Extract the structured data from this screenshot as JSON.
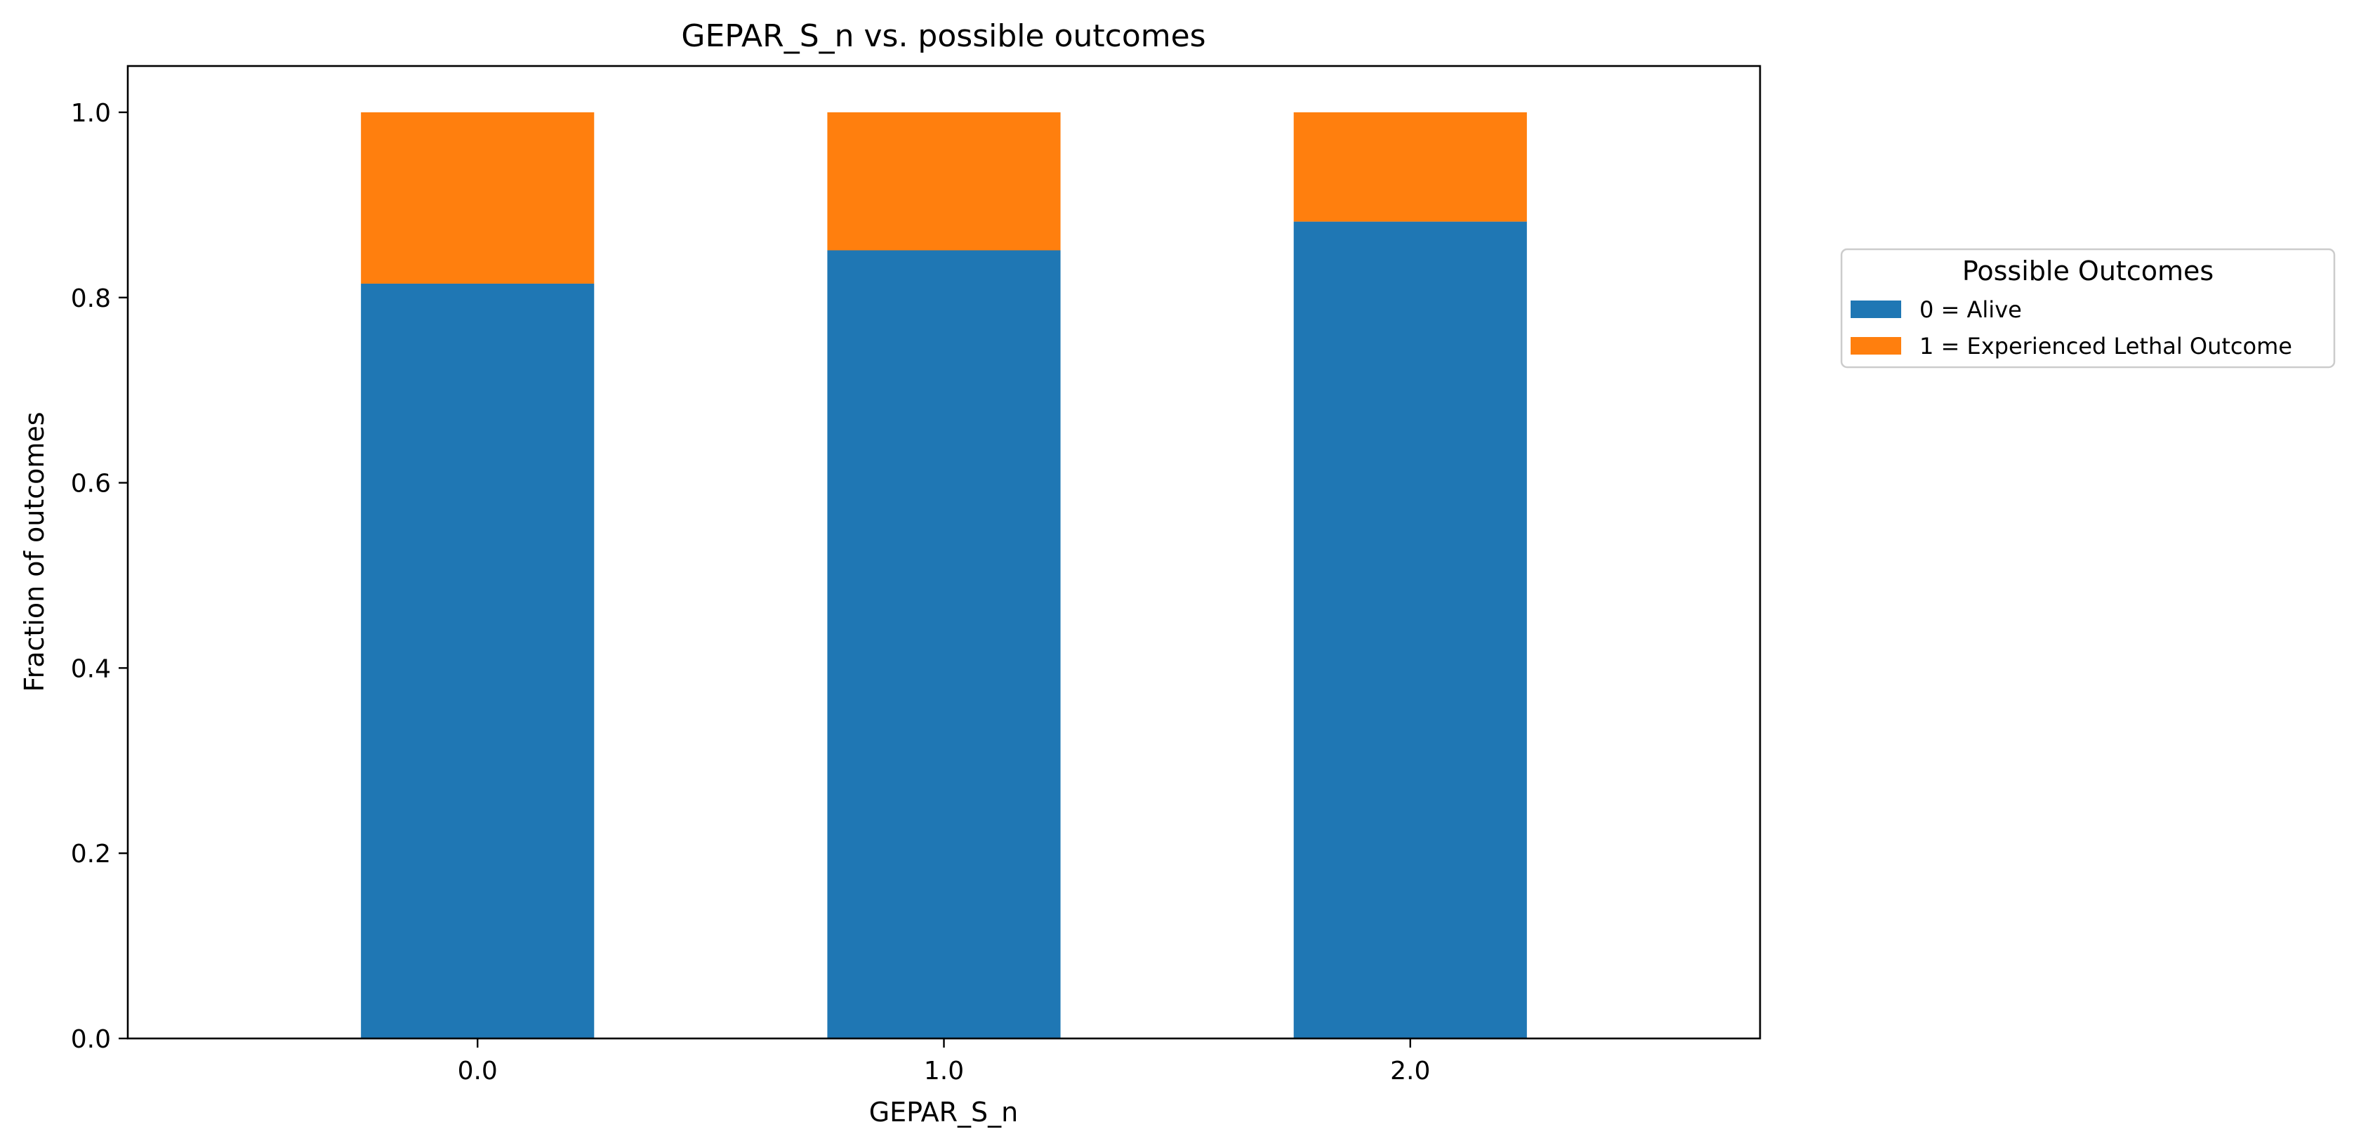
{
  "chart_data": {
    "type": "bar",
    "stacked": true,
    "title": "GEPAR_S_n vs. possible outcomes",
    "xlabel": "GEPAR_S_n",
    "ylabel": "Fraction of outcomes",
    "categories": [
      "0.0",
      "1.0",
      "2.0"
    ],
    "series": [
      {
        "name": "0 = Alive",
        "color": "#1f77b4",
        "values": [
          0.815,
          0.851,
          0.882
        ]
      },
      {
        "name": "1 = Experienced Lethal Outcome",
        "color": "#ff7f0e",
        "values": [
          0.185,
          0.149,
          0.118
        ]
      }
    ],
    "ylim": [
      0,
      1.05
    ],
    "yticks": [
      0.0,
      0.2,
      0.4,
      0.6,
      0.8,
      1.0
    ],
    "ytick_labels": [
      "0.0",
      "0.2",
      "0.4",
      "0.6",
      "0.8",
      "1.0"
    ],
    "grid": false,
    "legend": {
      "title": "Possible Outcomes",
      "placement": "outside-right"
    }
  }
}
